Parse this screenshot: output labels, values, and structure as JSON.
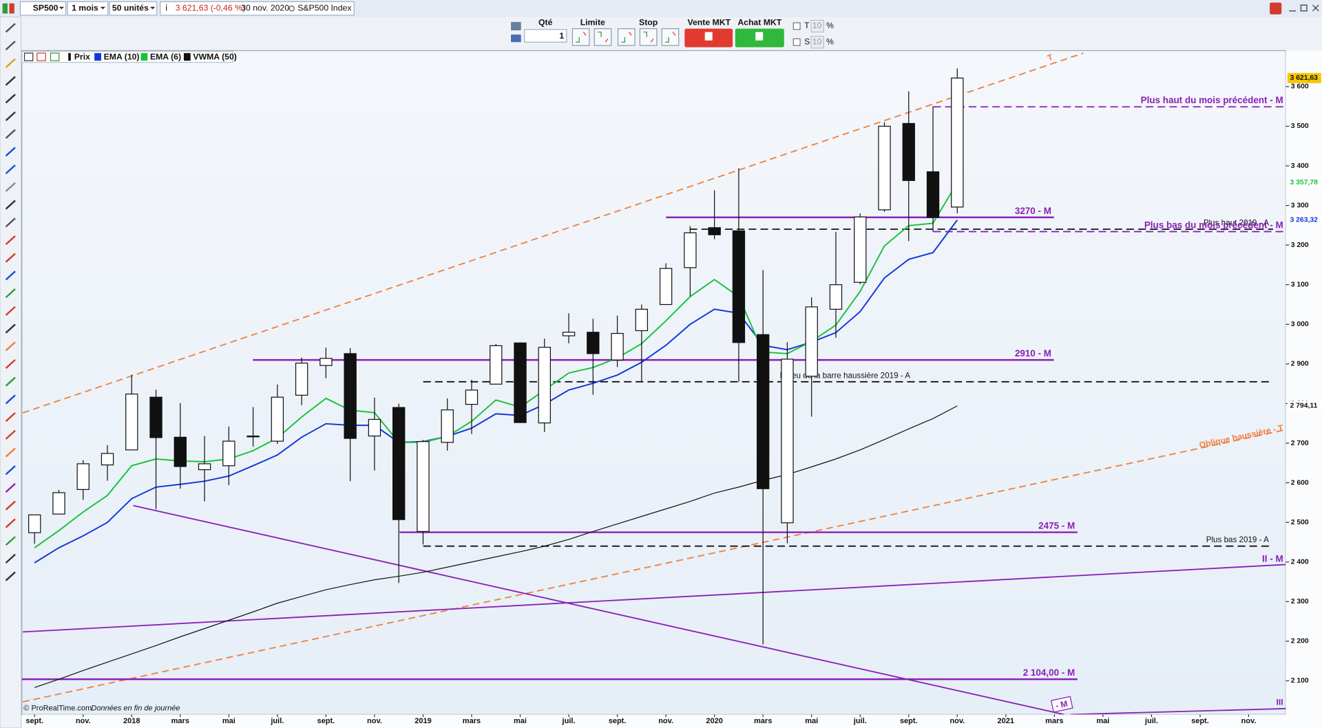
{
  "toolbar": {
    "symbol": "SP500",
    "period": "1 mois",
    "units": "50 unités",
    "price_change": "3 621,63 (-0,46 %)",
    "date": "30 nov. 2020",
    "instrument": "S&P500 Index"
  },
  "order_panel": {
    "qty_label": "Qté",
    "qty": 1,
    "limit": "Limite",
    "stop": "Stop",
    "sell": "Vente MKT",
    "buy": "Achat MKT",
    "t": "T",
    "t_value": 10,
    "s": "S",
    "s_value": 10,
    "percent": "%"
  },
  "footer": {
    "copyright": "© ProRealTime.com",
    "note": "Données en fin de journée"
  },
  "chart_data": {
    "type": "candlestick",
    "price_series_name": "Prix",
    "categories": [
      "sept.",
      null,
      "nov.",
      null,
      "2018",
      null,
      "mars",
      null,
      "mai",
      null,
      "juil.",
      null,
      "sept.",
      null,
      "nov.",
      null,
      "2019",
      null,
      "mars",
      null,
      "mai",
      null,
      "juil.",
      null,
      "sept.",
      null,
      "nov.",
      null,
      "2020",
      null,
      "mars",
      null,
      "mai",
      null,
      "juil.",
      null,
      "sept.",
      null,
      "nov.",
      null,
      "2021",
      null,
      "mars",
      null,
      "mai",
      null,
      "juil.",
      null,
      "sept.",
      null,
      "nov."
    ],
    "open": [
      2474,
      2521,
      2583,
      2645,
      2683,
      2816,
      2715,
      2633,
      2643,
      2718,
      2705,
      2821,
      2896,
      2926,
      2718,
      2790,
      2477,
      2702,
      2798,
      2849,
      2953,
      2751,
      2971,
      2980,
      2910,
      2984,
      3050,
      3143,
      3244,
      3236,
      2974,
      2499,
      2869,
      3038,
      3106,
      3289,
      3507,
      3385,
      3296,
      null,
      null,
      null,
      null,
      null,
      null,
      null,
      null,
      null,
      null,
      null,
      null
    ],
    "high": [
      2519,
      2582,
      2657,
      2695,
      2873,
      2835,
      2801,
      2718,
      2742,
      2791,
      2848,
      2916,
      2941,
      2940,
      2815,
      2800,
      2708,
      2813,
      2860,
      2950,
      2954,
      2964,
      3028,
      3014,
      3022,
      3050,
      3154,
      3248,
      3338,
      3394,
      3137,
      2955,
      3068,
      3233,
      3280,
      3510,
      3588,
      3550,
      3646,
      null,
      null,
      null,
      null,
      null,
      null,
      null,
      null,
      null,
      null,
      null,
      null
    ],
    "low": [
      2446,
      2520,
      2557,
      2605,
      2683,
      2533,
      2585,
      2553,
      2594,
      2691,
      2698,
      2796,
      2864,
      2604,
      2631,
      2347,
      2444,
      2681,
      2723,
      2848,
      2751,
      2728,
      2952,
      2822,
      2892,
      2856,
      3050,
      3071,
      3215,
      2855,
      2192,
      2447,
      2767,
      2966,
      3101,
      3284,
      3210,
      3234,
      3280,
      null,
      null,
      null,
      null,
      null,
      null,
      null,
      null,
      null,
      null,
      null,
      null
    ],
    "close": [
      2519,
      2575,
      2648,
      2674,
      2824,
      2714,
      2641,
      2648,
      2705,
      2718,
      2816,
      2902,
      2914,
      2712,
      2760,
      2507,
      2704,
      2784,
      2834,
      2946,
      2752,
      2942,
      2980,
      2926,
      2977,
      3038,
      3141,
      3231,
      3226,
      2954,
      2585,
      2912,
      3044,
      3100,
      3271,
      3500,
      3363,
      3270,
      3621.63,
      null,
      null,
      null,
      null,
      null,
      null,
      null,
      null,
      null,
      null,
      null,
      null
    ],
    "series": [
      {
        "name": "EMA (10)",
        "color": "#1237d8",
        "values": [
          2398,
          2436,
          2466,
          2500,
          2560,
          2589,
          2596,
          2604,
          2617,
          2643,
          2670,
          2715,
          2749,
          2745,
          2745,
          2702,
          2704,
          2717,
          2738,
          2774,
          2770,
          2798,
          2834,
          2851,
          2872,
          2904,
          2947,
          3000,
          3038,
          3028,
          2947,
          2936,
          2955,
          2979,
          3032,
          3117,
          3164,
          3181,
          3263.32,
          null,
          null,
          null,
          null,
          null,
          null,
          null,
          null,
          null,
          null,
          null,
          null
        ]
      },
      {
        "name": "EMA (6)",
        "color": "#19c23a",
        "values": [
          2436,
          2479,
          2526,
          2568,
          2643,
          2660,
          2655,
          2653,
          2660,
          2681,
          2713,
          2766,
          2813,
          2783,
          2777,
          2702,
          2702,
          2717,
          2755,
          2809,
          2791,
          2834,
          2877,
          2891,
          2915,
          2951,
          3009,
          3070,
          3113,
          3070,
          2930,
          2926,
          2957,
          2998,
          3083,
          3198,
          3249,
          3255,
          3357.78,
          null,
          null,
          null,
          null,
          null,
          null,
          null,
          null,
          null,
          null,
          null,
          null
        ]
      },
      {
        "name": "VWMA (50)",
        "color": "#111111",
        "values": [
          2083,
          2104,
          2126,
          2147,
          2168,
          2189,
          2211,
          2232,
          2253,
          2274,
          2296,
          2313,
          2330,
          2343,
          2355,
          2364,
          2374,
          2387,
          2400,
          2413,
          2426,
          2440,
          2457,
          2477,
          2496,
          2515,
          2534,
          2553,
          2574,
          2589,
          2606,
          2621,
          2640,
          2660,
          2683,
          2709,
          2736,
          2762,
          2794.11,
          null,
          null,
          null,
          null,
          null,
          null,
          null,
          null,
          null,
          null,
          null,
          null
        ]
      }
    ],
    "ylim": [
      2015,
      3691
    ],
    "yticks": [
      {
        "value": 2100,
        "label": "2 100"
      },
      {
        "value": 2200,
        "label": "2 200"
      },
      {
        "value": 2300,
        "label": "2 300"
      },
      {
        "value": 2400,
        "label": "2 400"
      },
      {
        "value": 2500,
        "label": "2 500"
      },
      {
        "value": 2600,
        "label": "2 600"
      },
      {
        "value": 2700,
        "label": "2 700"
      },
      {
        "value": 2800,
        "label": "2 800"
      },
      {
        "value": 2900,
        "label": "2 900"
      },
      {
        "value": 3000,
        "label": "3 000"
      },
      {
        "value": 3100,
        "label": "3 100"
      },
      {
        "value": 3200,
        "label": "3 200"
      },
      {
        "value": 3300,
        "label": "3 300"
      },
      {
        "value": 3400,
        "label": "3 400"
      },
      {
        "value": 3500,
        "label": "3 500"
      },
      {
        "value": 3600,
        "label": "3 600"
      }
    ],
    "price_tags": [
      {
        "value": 3621.63,
        "label": "3 621,63",
        "color": "#f6c700",
        "text_color": "#111111"
      },
      {
        "value": 3357.78,
        "label": "3 357,78",
        "color": "#ffffff",
        "text_color": "#19c23a"
      },
      {
        "value": 3263.32,
        "label": "3 263,32",
        "color": "#ffffff",
        "text_color": "#1237d8"
      },
      {
        "value": 2794.11,
        "label": "2 794,11",
        "color": "#ffffff",
        "text_color": "#111111"
      }
    ],
    "levels": [
      {
        "label": "Plus haut du mois précédent - M",
        "value": 3549,
        "color": "#8a1fb5",
        "style": "dashed"
      },
      {
        "label": "3270 - M",
        "value": 3270,
        "color": "#8a1fb5",
        "style": "solid"
      },
      {
        "label": "Plus haut 2019 - A",
        "value": 3240,
        "color": "#111111",
        "style": "dashed"
      },
      {
        "label": "Plus bas du mois précédent - M",
        "value": 3234,
        "color": "#8a1fb5",
        "style": "dashed"
      },
      {
        "label": "2910 - M",
        "value": 2910,
        "color": "#8a1fb5",
        "style": "solid"
      },
      {
        "label": "Milieu de la barre haussière 2019 - A",
        "value": 2855,
        "color": "#111111",
        "style": "dashed"
      },
      {
        "label": "2475 - M",
        "value": 2475,
        "color": "#8a1fb5",
        "style": "solid"
      },
      {
        "label": "Plus bas 2019 - A",
        "value": 2440,
        "color": "#111111",
        "style": "dashed"
      },
      {
        "label": "2 104,00 - M",
        "value": 2104,
        "color": "#8a1fb5",
        "style": "solid"
      }
    ],
    "annotations": [
      "T",
      "Oblique haussière - T",
      "II - M",
      "- M",
      "III"
    ]
  }
}
